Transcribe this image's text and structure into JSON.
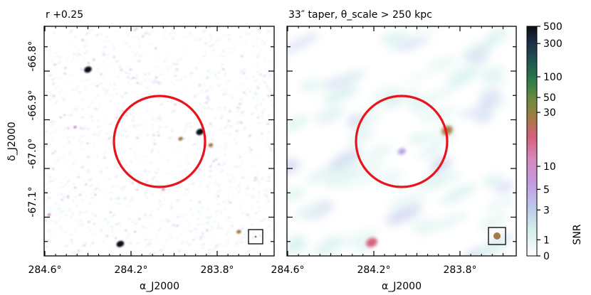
{
  "chart_data": [
    {
      "type": "heatmap",
      "title": "r +0.25",
      "xlabel": "α_J2000",
      "ylabel": "δ_J2000",
      "x_ticks": [
        "284.6°",
        "284.2°",
        "283.8°"
      ],
      "y_ticks": [
        "-66.8°",
        "-66.9°",
        "-67.0°",
        "-67.1°"
      ],
      "circle_color": "#e8141b",
      "sources": [
        {
          "ra": 284.4,
          "dec": -66.797,
          "snr": 500
        },
        {
          "ra": 283.88,
          "dec": -66.925,
          "snr": 400
        },
        {
          "ra": 284.25,
          "dec": -67.155,
          "snr": 300
        },
        {
          "ra": 283.78,
          "dec": -67.215,
          "snr": 120
        },
        {
          "ra": 283.71,
          "dec": -67.212,
          "snr": 200
        },
        {
          "ra": 283.97,
          "dec": -66.939,
          "snr": 30
        },
        {
          "ra": 283.83,
          "dec": -66.952,
          "snr": 30
        },
        {
          "ra": 283.69,
          "dec": -67.188,
          "snr": 40
        },
        {
          "ra": 283.7,
          "dec": -67.13,
          "snr": 20
        },
        {
          "ra": 284.46,
          "dec": -66.915,
          "snr": 8
        },
        {
          "ra": 284.05,
          "dec": -67.043,
          "snr": 8
        },
        {
          "ra": 284.58,
          "dec": -67.095,
          "snr": 8
        }
      ]
    },
    {
      "type": "heatmap",
      "title": "33″ taper, θ_scale > 250 kpc",
      "xlabel": "α_J2000",
      "x_ticks": [
        "284.6°",
        "284.2°",
        "283.8°"
      ],
      "circle_color": "#e8141b",
      "sources": [
        {
          "ra": 283.86,
          "dec": -66.922,
          "snr": 20
        },
        {
          "ra": 284.21,
          "dec": -67.152,
          "snr": 12
        },
        {
          "ra": 283.76,
          "dec": -67.218,
          "snr": 100
        },
        {
          "ra": 283.67,
          "dec": -67.215,
          "snr": 8
        },
        {
          "ra": 284.4,
          "dec": -67.215,
          "snr": 4
        },
        {
          "ra": 284.53,
          "dec": -67.2,
          "snr": 4
        },
        {
          "ra": 284.07,
          "dec": -66.965,
          "snr": 4
        }
      ]
    }
  ],
  "colorbar": {
    "label": "SNR",
    "ticks": [
      "500",
      "300",
      "100",
      "50",
      "30",
      "10",
      "5",
      "3",
      "1",
      "0"
    ]
  }
}
